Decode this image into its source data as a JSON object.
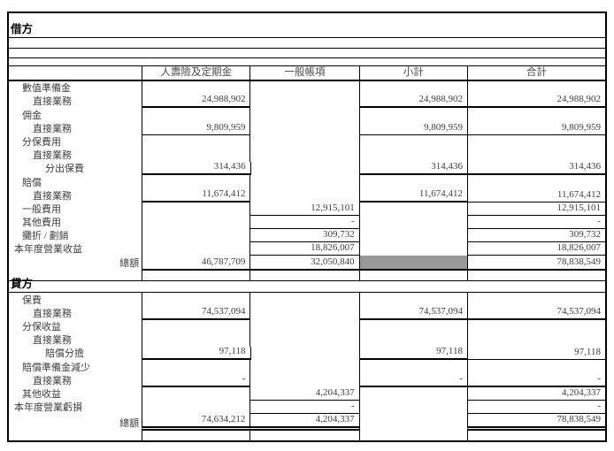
{
  "table": {
    "columns": [
      "人壽險及定期金",
      "一般帳項",
      "小計",
      "合計"
    ],
    "colors": {
      "shaded_cell": "#999999",
      "rule": "#000000"
    },
    "debit": {
      "title": "借方",
      "rows": [
        {
          "label": "數值準備金",
          "indent": 1,
          "values": [
            "",
            "",
            "",
            ""
          ],
          "u": [
            0,
            0,
            0,
            0
          ]
        },
        {
          "label": "直接業務",
          "indent": 2,
          "values": [
            "24,988,902",
            "",
            "24,988,902",
            "24,988,902"
          ],
          "u": [
            2,
            0,
            2,
            2
          ]
        },
        {
          "label": "佣金",
          "indent": 1,
          "values": [
            "",
            "",
            "",
            ""
          ],
          "u": [
            0,
            0,
            0,
            0
          ]
        },
        {
          "label": "直接業務",
          "indent": 2,
          "values": [
            "9,809,959",
            "",
            "9,809,959",
            "9,809,959"
          ],
          "u": [
            1,
            0,
            1,
            1
          ]
        },
        {
          "label": "分保費用",
          "indent": 1,
          "values": [
            "",
            "",
            "",
            ""
          ],
          "u": [
            0,
            0,
            0,
            0
          ]
        },
        {
          "label": "直接業務",
          "indent": 2,
          "values": [
            "",
            "",
            "",
            ""
          ],
          "u": [
            0,
            0,
            0,
            0
          ]
        },
        {
          "label": "分出保費",
          "indent": 3,
          "values": [
            "314,436",
            "",
            "314,436",
            "314,436"
          ],
          "u": [
            2,
            0,
            2,
            2
          ]
        },
        {
          "label": "賠償",
          "indent": 1,
          "values": [
            "",
            "",
            "",
            ""
          ],
          "u": [
            0,
            0,
            0,
            0
          ]
        },
        {
          "label": "直接業務",
          "indent": 2,
          "values": [
            "11,674,412",
            "",
            "11,674,412",
            "11,674,412"
          ],
          "u": [
            2,
            0,
            2,
            1
          ]
        },
        {
          "label": "一般費用",
          "indent": 1,
          "values": [
            "",
            "12,915,101",
            "",
            "12,915,101"
          ],
          "u": [
            0,
            1,
            0,
            1
          ]
        },
        {
          "label": "其他費用",
          "indent": 1,
          "values": [
            "",
            "-",
            "",
            "-"
          ],
          "u": [
            0,
            1,
            0,
            1
          ]
        },
        {
          "label": "攤折 / 劃銷",
          "indent": 1,
          "values": [
            "",
            "309,732",
            "",
            "309,732"
          ],
          "u": [
            0,
            1,
            0,
            1
          ]
        },
        {
          "label": "本年度營業收益",
          "indent": 0,
          "values": [
            "",
            "18,826,007",
            "",
            "18,826,007"
          ],
          "u": [
            0,
            1,
            0,
            1
          ]
        }
      ],
      "total": {
        "label": "總額",
        "values": [
          "46,787,709",
          "32,050,840",
          "",
          "78,838,549"
        ]
      }
    },
    "credit": {
      "title": "貸方",
      "rows": [
        {
          "label": "保費",
          "indent": 1,
          "values": [
            "",
            "",
            "",
            ""
          ],
          "u": [
            0,
            0,
            0,
            0
          ]
        },
        {
          "label": "直接業務",
          "indent": 2,
          "values": [
            "74,537,094",
            "",
            "74,537,094",
            "74,537,094"
          ],
          "u": [
            2,
            0,
            2,
            2
          ]
        },
        {
          "label": "分保收益",
          "indent": 1,
          "values": [
            "",
            "",
            "",
            ""
          ],
          "u": [
            0,
            0,
            0,
            0
          ]
        },
        {
          "label": "直接業務",
          "indent": 2,
          "values": [
            "",
            "",
            "",
            ""
          ],
          "u": [
            0,
            0,
            0,
            0
          ]
        },
        {
          "label": "賠償分擔",
          "indent": 3,
          "values": [
            "97,118",
            "",
            "97,118",
            "97,118"
          ],
          "u": [
            2,
            0,
            2,
            1
          ]
        },
        {
          "label": "賠償準備金減少",
          "indent": 1,
          "values": [
            "",
            "",
            "",
            ""
          ],
          "u": [
            0,
            0,
            0,
            0
          ]
        },
        {
          "label": "直接業務",
          "indent": 2,
          "values": [
            "-",
            "",
            "-",
            "-"
          ],
          "u": [
            2,
            0,
            2,
            2
          ]
        },
        {
          "label": "其他收益",
          "indent": 1,
          "values": [
            "",
            "4,204,337",
            "",
            "4,204,337"
          ],
          "u": [
            0,
            1,
            0,
            1
          ]
        },
        {
          "label": "本年度營業虧損",
          "indent": 0,
          "values": [
            "",
            "-",
            "",
            "-"
          ],
          "u": [
            0,
            1,
            0,
            1
          ]
        }
      ],
      "total": {
        "label": "總額",
        "values": [
          "74,634,212",
          "4,204,337",
          "",
          "78,838,549"
        ]
      }
    }
  }
}
